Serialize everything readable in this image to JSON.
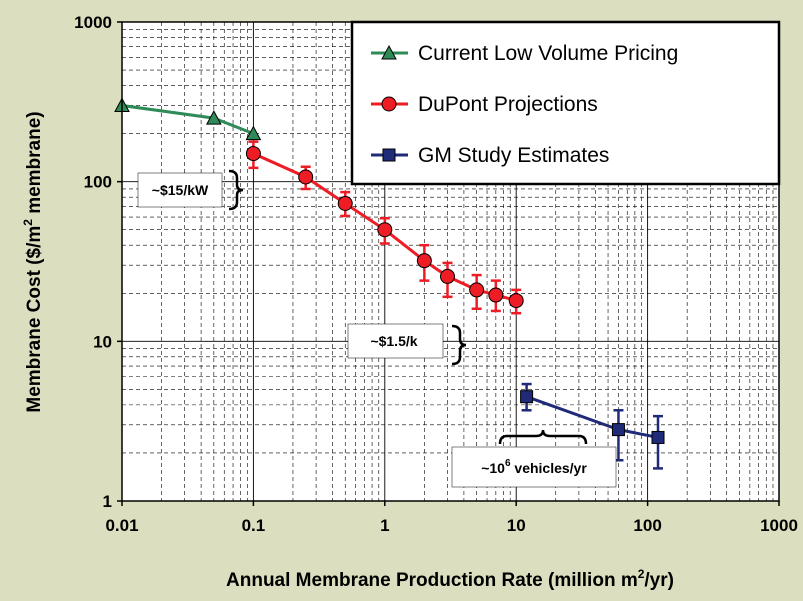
{
  "chart_data": {
    "type": "line",
    "title": "",
    "xlabel": {
      "main": "Annual Membrane Production Rate (million m",
      "sup": "2",
      "end": "/yr)"
    },
    "ylabel": {
      "main": "Membrane Cost ($/m",
      "sup": "2",
      "end": " membrane)"
    },
    "x_scale": "log",
    "y_scale": "log",
    "xlim": [
      0.01,
      1000
    ],
    "ylim": [
      1,
      1000
    ],
    "x_ticks": [
      {
        "value": 0.01,
        "label": "0.01"
      },
      {
        "value": 0.1,
        "label": "0.1"
      },
      {
        "value": 1,
        "label": "1"
      },
      {
        "value": 10,
        "label": "10"
      },
      {
        "value": 100,
        "label": "100"
      },
      {
        "value": 1000,
        "label": "1000"
      }
    ],
    "y_ticks": [
      {
        "value": 1,
        "label": "1"
      },
      {
        "value": 10,
        "label": "10"
      },
      {
        "value": 100,
        "label": "100"
      },
      {
        "value": 1000,
        "label": "1000"
      }
    ],
    "grid": true,
    "legend_position": "top-right",
    "series": [
      {
        "name": "Current Low Volume Pricing",
        "color": "#2e8b57",
        "marker": "triangle",
        "x": [
          0.01,
          0.05,
          0.1
        ],
        "y": [
          300,
          250,
          200
        ]
      },
      {
        "name": "DuPont Projections",
        "color": "#ee1c25",
        "marker": "circle",
        "x": [
          0.1,
          0.25,
          0.5,
          1,
          2,
          3,
          5,
          7,
          10
        ],
        "y": [
          150,
          107,
          73,
          50,
          32,
          25.5,
          21,
          19.5,
          18
        ],
        "err_low": [
          122,
          90,
          61,
          41,
          24,
          19,
          16,
          15.5,
          15
        ],
        "err_high": [
          178,
          124,
          86,
          59,
          40,
          31,
          26,
          24,
          21
        ]
      },
      {
        "name": "GM Study Estimates",
        "color": "#1f2a78",
        "marker": "square",
        "x": [
          12,
          60,
          120
        ],
        "y": [
          4.5,
          2.8,
          2.5
        ],
        "err_low": [
          3.7,
          1.8,
          1.6
        ],
        "err_high": [
          5.4,
          3.7,
          3.4
        ]
      }
    ],
    "annotations": [
      {
        "text": "~$15/kW",
        "sup": "",
        "end": ""
      },
      {
        "text": "~$1.5/k",
        "sup": "",
        "end": ""
      },
      {
        "text": "~10",
        "sup": "6",
        "end": " vehicles/yr"
      }
    ]
  }
}
